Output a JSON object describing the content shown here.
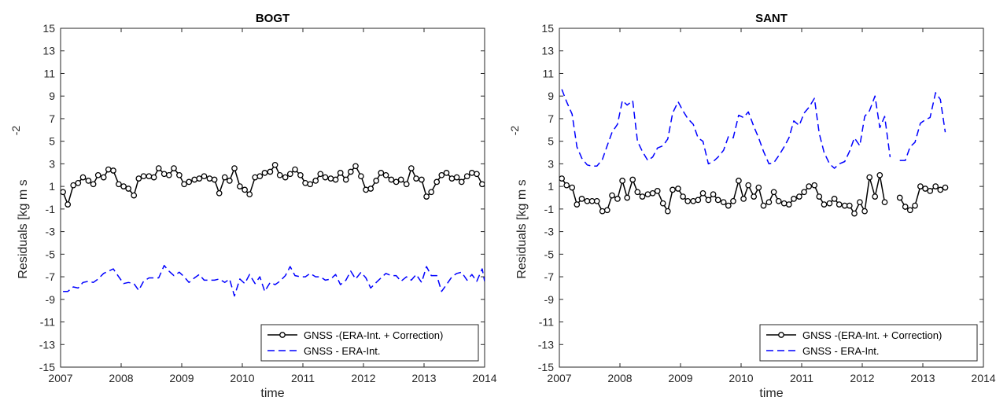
{
  "chart_data": [
    {
      "type": "line",
      "title": "BOGT",
      "xlabel": "time",
      "ylabel": "Residuals [kg m s",
      "ylabel_exponent": "-2",
      "xlim": [
        2007,
        2014
      ],
      "ylim": [
        -15,
        15
      ],
      "xticks": [
        2007,
        2008,
        2009,
        2010,
        2011,
        2012,
        2013,
        2014
      ],
      "yticks": [
        -15,
        -13,
        -11,
        -9,
        -7,
        -5,
        -3,
        -1,
        1,
        3,
        5,
        7,
        9,
        11,
        13,
        15
      ],
      "grid": false,
      "legend_position": "bottom-right",
      "series": [
        {
          "name": "GNSS -(ERA-Int. + Correction)",
          "style": "solid-circle",
          "color": "#000000",
          "x": [
            2007.04,
            2007.12,
            2007.21,
            2007.29,
            2007.37,
            2007.46,
            2007.54,
            2007.62,
            2007.71,
            2007.79,
            2007.87,
            2007.96,
            2008.04,
            2008.12,
            2008.21,
            2008.29,
            2008.37,
            2008.46,
            2008.54,
            2008.62,
            2008.71,
            2008.79,
            2008.87,
            2008.96,
            2009.04,
            2009.12,
            2009.21,
            2009.29,
            2009.37,
            2009.46,
            2009.54,
            2009.62,
            2009.71,
            2009.79,
            2009.87,
            2009.96,
            2010.04,
            2010.12,
            2010.21,
            2010.29,
            2010.37,
            2010.46,
            2010.54,
            2010.62,
            2010.71,
            2010.79,
            2010.87,
            2010.96,
            2011.04,
            2011.12,
            2011.21,
            2011.29,
            2011.37,
            2011.46,
            2011.54,
            2011.62,
            2011.71,
            2011.79,
            2011.87,
            2011.96,
            2012.04,
            2012.12,
            2012.21,
            2012.29,
            2012.37,
            2012.46,
            2012.54,
            2012.62,
            2012.71,
            2012.79,
            2012.87,
            2012.96,
            2013.04,
            2013.12,
            2013.21,
            2013.29,
            2013.37,
            2013.46,
            2013.54,
            2013.62,
            2013.71,
            2013.79,
            2013.87,
            2013.96
          ],
          "y": [
            0.5,
            -0.6,
            1.1,
            1.3,
            1.8,
            1.5,
            1.2,
            2.0,
            1.8,
            2.5,
            2.4,
            1.2,
            1.0,
            0.8,
            0.2,
            1.7,
            1.9,
            1.9,
            1.8,
            2.6,
            2.1,
            2.0,
            2.6,
            2.0,
            1.2,
            1.4,
            1.6,
            1.7,
            1.9,
            1.7,
            1.6,
            0.4,
            1.8,
            1.5,
            2.6,
            1.0,
            0.7,
            0.3,
            1.8,
            1.9,
            2.2,
            2.3,
            2.9,
            2.0,
            1.8,
            2.1,
            2.5,
            2.0,
            1.3,
            1.2,
            1.5,
            2.1,
            1.8,
            1.7,
            1.6,
            2.2,
            1.6,
            2.3,
            2.8,
            1.9,
            0.7,
            0.8,
            1.5,
            2.2,
            2.0,
            1.6,
            1.4,
            1.6,
            1.2,
            2.6,
            1.7,
            1.6,
            0.1,
            0.5,
            1.4,
            2.0,
            2.2,
            1.7,
            1.8,
            1.4,
            1.9,
            2.2,
            2.1,
            1.2
          ]
        },
        {
          "name": "GNSS - ERA-Int.",
          "style": "dashed",
          "color": "#0000ff",
          "x": [
            2007.04,
            2007.12,
            2007.21,
            2007.29,
            2007.37,
            2007.46,
            2007.54,
            2007.62,
            2007.71,
            2007.79,
            2007.87,
            2007.96,
            2008.04,
            2008.12,
            2008.21,
            2008.29,
            2008.37,
            2008.46,
            2008.54,
            2008.62,
            2008.71,
            2008.79,
            2008.87,
            2008.96,
            2009.04,
            2009.12,
            2009.21,
            2009.29,
            2009.37,
            2009.46,
            2009.54,
            2009.62,
            2009.71,
            2009.79,
            2009.87,
            2009.96,
            2010.04,
            2010.12,
            2010.21,
            2010.29,
            2010.37,
            2010.46,
            2010.54,
            2010.62,
            2010.71,
            2010.79,
            2010.87,
            2010.96,
            2011.04,
            2011.12,
            2011.21,
            2011.29,
            2011.37,
            2011.46,
            2011.54,
            2011.62,
            2011.71,
            2011.79,
            2011.87,
            2011.96,
            2012.04,
            2012.12,
            2012.21,
            2012.29,
            2012.37,
            2012.46,
            2012.54,
            2012.62,
            2012.71,
            2012.79,
            2012.87,
            2012.96,
            2013.04,
            2013.12,
            2013.21,
            2013.29,
            2013.37,
            2013.46,
            2013.54,
            2013.62,
            2013.71,
            2013.79,
            2013.87,
            2013.96
          ],
          "y": [
            -8.3,
            -8.3,
            -7.9,
            -8.0,
            -7.5,
            -7.4,
            -7.5,
            -7.2,
            -6.7,
            -6.5,
            -6.3,
            -7.0,
            -7.6,
            -7.5,
            -7.6,
            -8.2,
            -7.4,
            -7.1,
            -7.1,
            -7.1,
            -6.0,
            -6.5,
            -6.9,
            -6.6,
            -7.0,
            -7.5,
            -7.1,
            -6.8,
            -7.3,
            -7.3,
            -7.3,
            -7.2,
            -7.5,
            -7.2,
            -8.7,
            -7.2,
            -7.6,
            -6.8,
            -7.6,
            -7.0,
            -8.3,
            -7.5,
            -7.7,
            -7.4,
            -6.9,
            -6.1,
            -6.9,
            -7.0,
            -7.0,
            -6.7,
            -7.0,
            -7.0,
            -7.3,
            -7.2,
            -6.8,
            -7.7,
            -7.3,
            -6.5,
            -7.2,
            -6.6,
            -7.1,
            -8.0,
            -7.5,
            -7.1,
            -6.7,
            -6.9,
            -6.9,
            -7.4,
            -7.0,
            -7.3,
            -6.8,
            -7.5,
            -6.1,
            -6.9,
            -6.9,
            -8.3,
            -7.7,
            -7.0,
            -6.7,
            -6.6,
            -7.3,
            -6.8,
            -7.4,
            -6.3
          ],
          "y_end": -7.4
        }
      ]
    },
    {
      "type": "line",
      "title": "SANT",
      "xlabel": "time",
      "ylabel": "Residuals [kg m s",
      "ylabel_exponent": "-2",
      "xlim": [
        2007,
        2014
      ],
      "ylim": [
        -15,
        15
      ],
      "xticks": [
        2007,
        2008,
        2009,
        2010,
        2011,
        2012,
        2013,
        2014
      ],
      "yticks": [
        -15,
        -13,
        -11,
        -9,
        -7,
        -5,
        -3,
        -1,
        1,
        3,
        5,
        7,
        9,
        11,
        13,
        15
      ],
      "grid": false,
      "legend_position": "bottom-right",
      "series": [
        {
          "name": "GNSS -(ERA-Int. + Correction)",
          "style": "solid-circle",
          "color": "#000000",
          "x": [
            2007.04,
            2007.12,
            2007.21,
            2007.29,
            2007.37,
            2007.46,
            2007.54,
            2007.62,
            2007.71,
            2007.79,
            2007.87,
            2007.96,
            2008.04,
            2008.12,
            2008.21,
            2008.29,
            2008.37,
            2008.46,
            2008.54,
            2008.62,
            2008.71,
            2008.79,
            2008.87,
            2008.96,
            2009.04,
            2009.12,
            2009.21,
            2009.29,
            2009.37,
            2009.46,
            2009.54,
            2009.62,
            2009.71,
            2009.79,
            2009.87,
            2009.96,
            2010.04,
            2010.12,
            2010.21,
            2010.29,
            2010.37,
            2010.46,
            2010.54,
            2010.62,
            2010.71,
            2010.79,
            2010.87,
            2010.96,
            2011.04,
            2011.12,
            2011.21,
            2011.29,
            2011.37,
            2011.46,
            2011.54,
            2011.62,
            2011.71,
            2011.79,
            2011.87,
            2011.96,
            2012.04,
            2012.12,
            2012.21,
            2012.29,
            2012.37,
            null,
            2012.62,
            2012.71,
            2012.79,
            2012.87,
            2012.96,
            2013.04,
            2013.12,
            2013.21,
            2013.29,
            2013.37
          ],
          "y": [
            1.7,
            1.1,
            0.9,
            -0.6,
            -0.1,
            -0.3,
            -0.3,
            -0.3,
            -1.2,
            -1.1,
            0.2,
            -0.1,
            1.5,
            0.0,
            1.6,
            0.5,
            0.1,
            0.3,
            0.4,
            0.6,
            -0.5,
            -1.2,
            0.7,
            0.8,
            0.1,
            -0.3,
            -0.3,
            -0.2,
            0.4,
            -0.2,
            0.3,
            -0.2,
            -0.4,
            -0.7,
            -0.3,
            1.5,
            -0.1,
            1.1,
            0.1,
            0.9,
            -0.7,
            -0.4,
            0.5,
            -0.3,
            -0.5,
            -0.6,
            -0.1,
            0.1,
            0.5,
            1.0,
            1.1,
            0.1,
            -0.6,
            -0.5,
            -0.1,
            -0.6,
            -0.7,
            -0.7,
            -1.4,
            -0.4,
            -1.2,
            1.8,
            0.1,
            2.0,
            -0.4,
            null,
            0.0,
            -0.8,
            -1.1,
            -0.7,
            1.0,
            0.8,
            0.6,
            1.0,
            0.7,
            0.9
          ]
        },
        {
          "name": "GNSS - ERA-Int.",
          "style": "dashed",
          "color": "#0000ff",
          "x": [
            2007.04,
            2007.12,
            2007.21,
            2007.29,
            2007.37,
            2007.46,
            2007.54,
            2007.62,
            2007.71,
            2007.79,
            2007.87,
            2007.96,
            2008.04,
            2008.12,
            2008.21,
            2008.29,
            2008.37,
            2008.46,
            2008.54,
            2008.62,
            2008.71,
            2008.79,
            2008.87,
            2008.96,
            2009.04,
            2009.12,
            2009.21,
            2009.29,
            2009.37,
            2009.46,
            2009.54,
            2009.62,
            2009.71,
            2009.79,
            2009.87,
            2009.96,
            2010.04,
            2010.12,
            2010.21,
            2010.29,
            2010.37,
            2010.46,
            2010.54,
            2010.62,
            2010.71,
            2010.79,
            2010.87,
            2010.96,
            2011.04,
            2011.12,
            2011.21,
            2011.29,
            2011.37,
            2011.46,
            2011.54,
            2011.62,
            2011.71,
            2011.79,
            2011.87,
            2011.96,
            2012.04,
            2012.12,
            2012.21,
            2012.29,
            2012.37,
            2012.46,
            null,
            2012.62,
            2012.71,
            2012.79,
            2012.87,
            2012.96,
            2013.04,
            2013.12,
            2013.21,
            2013.29,
            2013.37
          ],
          "y": [
            9.6,
            8.5,
            7.4,
            4.5,
            3.5,
            2.9,
            2.8,
            2.8,
            3.4,
            4.6,
            5.8,
            6.5,
            8.6,
            8.2,
            8.6,
            5.0,
            4.1,
            3.3,
            3.6,
            4.4,
            4.6,
            5.2,
            7.5,
            8.5,
            7.7,
            7.0,
            6.5,
            5.3,
            5.0,
            3.0,
            3.2,
            3.6,
            4.2,
            5.4,
            5.3,
            7.3,
            7.1,
            7.6,
            6.3,
            5.3,
            4.1,
            3.0,
            3.1,
            3.7,
            4.5,
            5.3,
            6.8,
            6.4,
            7.5,
            8.0,
            8.8,
            5.7,
            4.0,
            3.0,
            2.6,
            3.0,
            3.2,
            4.1,
            5.3,
            4.6,
            7.2,
            7.7,
            9.0,
            6.2,
            7.2,
            3.6,
            null,
            3.3,
            3.3,
            4.5,
            4.9,
            6.6,
            6.9,
            7.1,
            9.3,
            8.7,
            5.8
          ]
        }
      ]
    }
  ]
}
